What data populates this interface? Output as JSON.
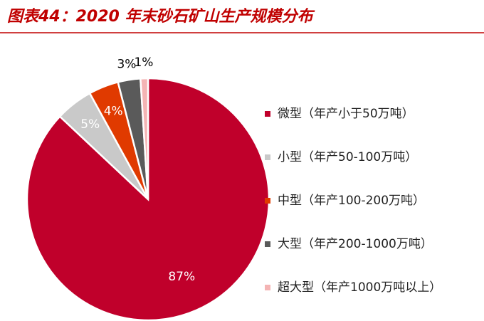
{
  "chart_data": {
    "type": "pie",
    "title": "图表44：2020 年末砂石矿山生产规模分布",
    "categories": [
      "微型（年产小于50万吨）",
      "小型（年产50-100万吨）",
      "中型（年产100-200万吨）",
      "大型（年产200-1000万吨）",
      "超大型（年产1000万吨以上）"
    ],
    "values": [
      87,
      5,
      4,
      3,
      1
    ],
    "value_labels": [
      "87%",
      "5%",
      "4%",
      "3%",
      "1%"
    ],
    "colors": [
      "#c0002b",
      "#c9c9c9",
      "#e03a00",
      "#5a5a5a",
      "#f4b4b4"
    ],
    "legend": "right"
  }
}
